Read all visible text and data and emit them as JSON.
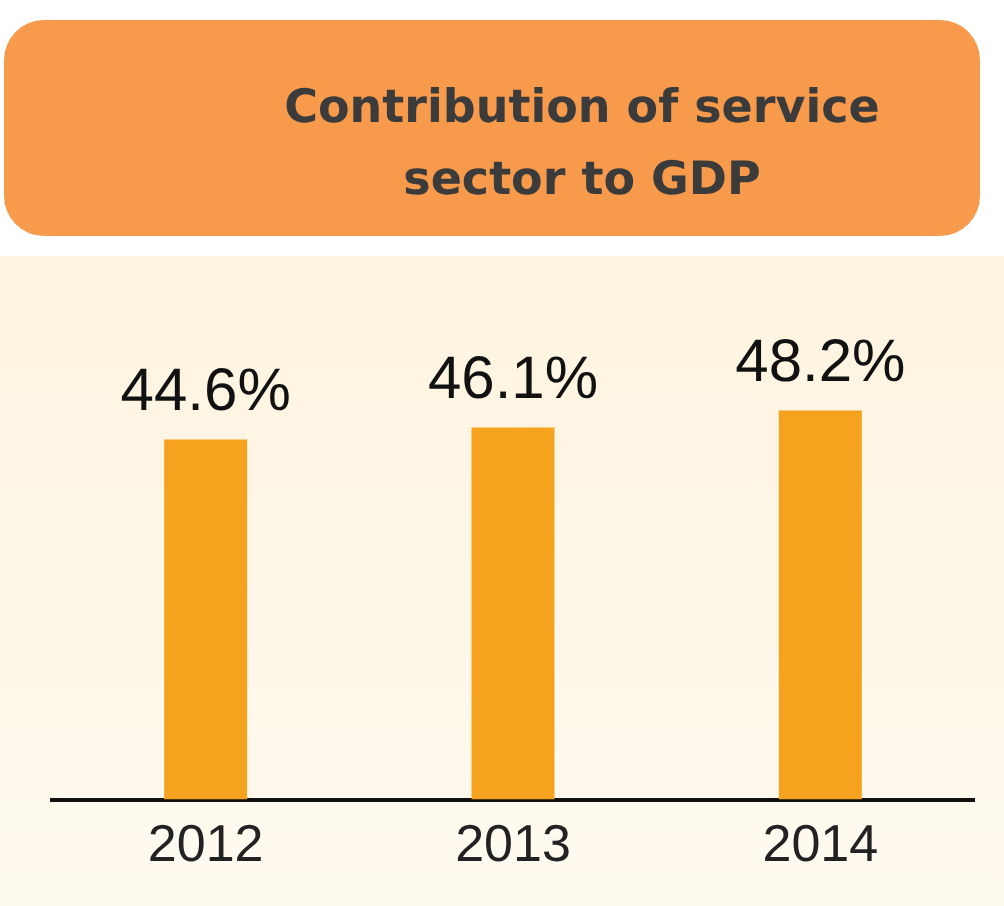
{
  "chart_data": {
    "type": "bar",
    "title": "Contribution of service sector to GDP",
    "categories": [
      "2012",
      "2013",
      "2014"
    ],
    "values": [
      44.6,
      46.1,
      48.2
    ],
    "value_labels": [
      "44.6%",
      "46.1%",
      "48.2%"
    ],
    "color": "#f5a31f",
    "tick_labels": "x",
    "grid": false,
    "legend": false
  }
}
